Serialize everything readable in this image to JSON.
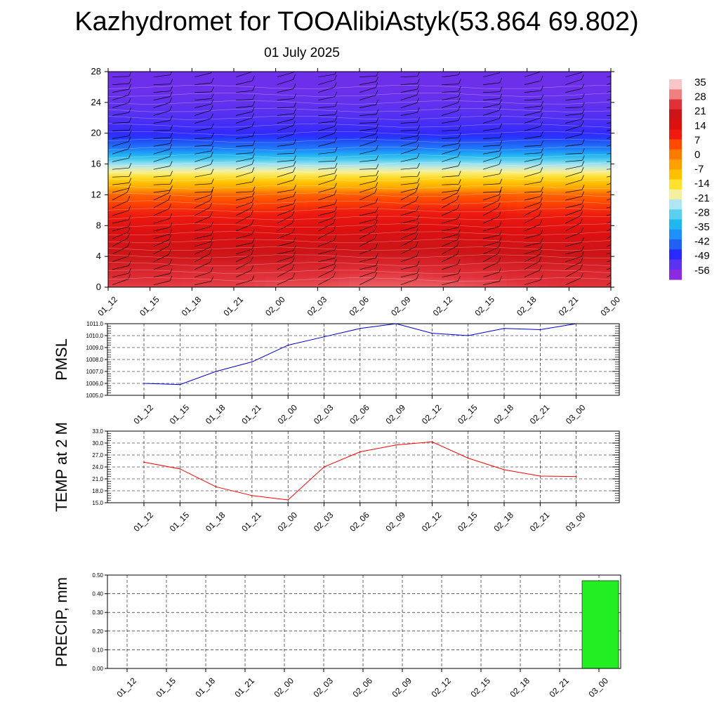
{
  "header": {
    "title": "Kazhydromet for TOOAlibiAstyk(53.864 69.802)",
    "date": "01 July 2025"
  },
  "colors": {
    "pmsl_line": "#0000cc",
    "temp_line": "#ff0000",
    "precip_bar": "#22ee22",
    "contour_line": "#ffffff",
    "barb": "#000000",
    "colorbar": [
      "#8a2be2",
      "#5a32f0",
      "#2828ff",
      "#2060f5",
      "#1e90ff",
      "#20b6ee",
      "#5ad0f0",
      "#b0e6f2",
      "#f5f0a0",
      "#ffe230",
      "#ffc000",
      "#ffa000",
      "#ff7a00",
      "#ff4a00",
      "#ee1a10",
      "#dd1010",
      "#cc1518",
      "#e0303a",
      "#f08080",
      "#f8c6c6"
    ]
  },
  "chart_data": [
    {
      "type": "heatmap",
      "title": "",
      "xlabel": "",
      "ylabel": "",
      "x_ticks": [
        "01_12",
        "01_15",
        "01_18",
        "01_21",
        "02_00",
        "02_03",
        "02_06",
        "02_09",
        "02_12",
        "02_15",
        "02_18",
        "02_21",
        "03_00"
      ],
      "y_ticks": [
        "0",
        "4",
        "8",
        "12",
        "16",
        "20",
        "24",
        "28"
      ],
      "ylim": [
        0,
        28
      ],
      "colorbar_labels": [
        "35",
        "28",
        "21",
        "14",
        "7",
        "0",
        "-7",
        "-14",
        "-21",
        "-28",
        "-35",
        "-42",
        "-49",
        "-56"
      ],
      "value_range": [
        -60,
        36
      ],
      "levels": [
        0,
        2,
        4,
        6,
        8,
        10,
        12,
        13,
        14,
        16,
        18,
        20,
        22,
        24,
        26,
        28
      ],
      "values": [
        [
          27,
          27,
          27,
          27,
          28,
          28,
          29,
          29,
          29,
          28,
          27,
          26,
          26
        ],
        [
          24,
          24,
          25,
          25,
          25,
          25,
          26,
          26,
          25,
          25,
          24,
          24,
          24
        ],
        [
          21,
          21,
          21,
          21,
          21,
          22,
          22,
          22,
          22,
          21,
          21,
          21,
          21
        ],
        [
          18,
          18,
          18,
          18,
          18,
          18,
          19,
          19,
          19,
          18,
          18,
          18,
          18
        ],
        [
          14,
          14,
          14,
          14,
          14,
          15,
          15,
          15,
          15,
          15,
          14,
          14,
          14
        ],
        [
          9,
          9,
          9,
          9,
          9,
          10,
          10,
          10,
          10,
          10,
          9,
          9,
          9
        ],
        [
          3,
          3,
          3,
          3,
          3,
          3,
          4,
          4,
          4,
          4,
          3,
          3,
          3
        ],
        [
          -6,
          -6,
          -6,
          -6,
          -6,
          -6,
          -6,
          -6,
          -6,
          -6,
          -6,
          -6,
          -6
        ],
        [
          -12,
          -12,
          -12,
          -12,
          -12,
          -12,
          -12,
          -12,
          -12,
          -12,
          -12,
          -12,
          -12
        ],
        [
          -26,
          -26,
          -26,
          -26,
          -26,
          -26,
          -26,
          -26,
          -26,
          -26,
          -26,
          -26,
          -26
        ],
        [
          -42,
          -42,
          -42,
          -42,
          -42,
          -42,
          -42,
          -42,
          -42,
          -42,
          -42,
          -42,
          -42
        ],
        [
          -51,
          -51,
          -51,
          -51,
          -51,
          -51,
          -51,
          -51,
          -51,
          -51,
          -51,
          -51,
          -51
        ],
        [
          -54,
          -54,
          -54,
          -54,
          -54,
          -54,
          -54,
          -54,
          -54,
          -54,
          -54,
          -54,
          -54
        ],
        [
          -56,
          -56,
          -56,
          -56,
          -56,
          -56,
          -56,
          -56,
          -56,
          -56,
          -56,
          -56,
          -56
        ],
        [
          -57,
          -57,
          -57,
          -57,
          -57,
          -57,
          -57,
          -57,
          -57,
          -57,
          -57,
          -57,
          -57
        ],
        [
          -57,
          -57,
          -57,
          -57,
          -57,
          -57,
          -57,
          -57,
          -57,
          -57,
          -57,
          -57,
          -57
        ]
      ]
    },
    {
      "type": "line",
      "title": "",
      "xlabel": "",
      "ylabel": "PMSL",
      "categories": [
        "01_12",
        "01_15",
        "01_18",
        "01_21",
        "02_00",
        "02_03",
        "02_06",
        "02_09",
        "02_12",
        "02_15",
        "02_18",
        "02_21",
        "03_00"
      ],
      "ylim": [
        1005.0,
        1011.0
      ],
      "y_ticks": [
        "1005.0",
        "1006.0",
        "1007.0",
        "1008.0",
        "1009.0",
        "1010.0",
        "1011.0"
      ],
      "grid": true,
      "series": [
        {
          "values": [
            1006.0,
            1005.9,
            1007.0,
            1007.8,
            1009.2,
            1009.9,
            1010.6,
            1011.0,
            1010.2,
            1010.0,
            1010.6,
            1010.5,
            1011.0
          ]
        }
      ]
    },
    {
      "type": "line",
      "title": "",
      "xlabel": "",
      "ylabel": "TEMP at 2 M",
      "categories": [
        "01_12",
        "01_15",
        "01_18",
        "01_21",
        "02_00",
        "02_03",
        "02_06",
        "02_09",
        "02_12",
        "02_15",
        "02_18",
        "02_21",
        "03_00"
      ],
      "ylim": [
        15.0,
        33.0
      ],
      "y_ticks": [
        "15.0",
        "18.0",
        "21.0",
        "24.0",
        "27.0",
        "30.0",
        "33.0"
      ],
      "grid": true,
      "series": [
        {
          "values": [
            25.2,
            23.5,
            19.0,
            16.8,
            15.7,
            24.0,
            27.8,
            29.5,
            30.3,
            26.2,
            23.3,
            21.7,
            21.6
          ]
        }
      ]
    },
    {
      "type": "bar",
      "title": "",
      "xlabel": "",
      "ylabel": "PRECIP, mm",
      "categories": [
        "01_12",
        "01_15",
        "01_18",
        "01_21",
        "02_00",
        "02_03",
        "02_06",
        "02_09",
        "02_12",
        "02_15",
        "02_18",
        "02_21",
        "03_00"
      ],
      "ylim": [
        0.0,
        0.5
      ],
      "y_ticks": [
        "0.00",
        "0.10",
        "0.20",
        "0.30",
        "0.40",
        "0.50"
      ],
      "grid": true,
      "values": [
        0,
        0,
        0,
        0,
        0,
        0,
        0,
        0,
        0,
        0,
        0,
        0,
        0.47
      ]
    }
  ]
}
